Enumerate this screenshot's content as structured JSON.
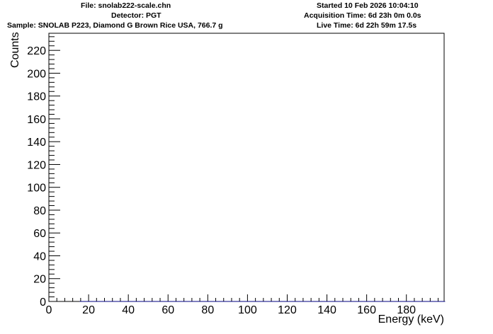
{
  "header": {
    "file": "File: snolab222-scale.chn",
    "detector": "Detector: PGT",
    "sample": "Sample: SNOLAB P223, Diamond G Brown Rice USA, 766.7 g",
    "started": "Started 10 Feb 2026 10:04:10",
    "acquisition": "Acquisition Time: 6d 23h 0m 0.0s",
    "live": "Live Time: 6d 22h 59m 17.5s"
  },
  "chart_data": {
    "type": "line",
    "style": "step-histogram",
    "xlabel": "Energy (keV)",
    "ylabel": "Counts",
    "xlim": [
      0,
      199
    ],
    "ylim": [
      0,
      235
    ],
    "x_ticks": [
      0,
      20,
      40,
      60,
      80,
      100,
      120,
      140,
      160,
      180
    ],
    "y_ticks": [
      0,
      20,
      40,
      60,
      80,
      100,
      120,
      140,
      160,
      180,
      200,
      220
    ],
    "line_color": "#000080",
    "bin_width_kev": 0.5,
    "series": [
      {
        "x_start": 15.5,
        "values": [
          0,
          0,
          0,
          0,
          0,
          0,
          0,
          0,
          0,
          0,
          0,
          0,
          0,
          0,
          0,
          0,
          0,
          0,
          0,
          0,
          0,
          0,
          0,
          0,
          0,
          0,
          0,
          0,
          0,
          0,
          0,
          0,
          0,
          0,
          0,
          0,
          0,
          0,
          0,
          0,
          0,
          0,
          0,
          0,
          0,
          0,
          0,
          0,
          0,
          0,
          0,
          0,
          0,
          0,
          0,
          0,
          0,
          0,
          0,
          0,
          0,
          0,
          0,
          0,
          0,
          0,
          0,
          0,
          0,
          0,
          0,
          0,
          0,
          0,
          0,
          0,
          0,
          0,
          0,
          0,
          0,
          0,
          0,
          0,
          0,
          0,
          0,
          0,
          0,
          0,
          0,
          0,
          0,
          0,
          0,
          0,
          0,
          0,
          0,
          0,
          0,
          0,
          0,
          0,
          0,
          0,
          0,
          0,
          0,
          0,
          0,
          0,
          0,
          0,
          0,
          0,
          0,
          0,
          0,
          0,
          0,
          0,
          0,
          0,
          0,
          0,
          0,
          0,
          0,
          0,
          0,
          0,
          0,
          0,
          0,
          0,
          0,
          0,
          0,
          0,
          0,
          0,
          0,
          0,
          0,
          0,
          0,
          0,
          0,
          0,
          0,
          0,
          0,
          0,
          0,
          0,
          0,
          0,
          0,
          0,
          0,
          0,
          0,
          0,
          0,
          0,
          0,
          0,
          0,
          0,
          0,
          0,
          0,
          0,
          0,
          0,
          0,
          0,
          0,
          0,
          0,
          0,
          0,
          0,
          0,
          0,
          0,
          0,
          0,
          0,
          0,
          0,
          0,
          0,
          0,
          0,
          0,
          0,
          0,
          0,
          0,
          0,
          0,
          0,
          0,
          0,
          0,
          0,
          0,
          0,
          0,
          0,
          0,
          0,
          0,
          0,
          0,
          0,
          0,
          0,
          0,
          0,
          0,
          0,
          0,
          0,
          0,
          0,
          0,
          0,
          0,
          0,
          0,
          0,
          0,
          0,
          0,
          0,
          0,
          0,
          0,
          0,
          0,
          0,
          0,
          0,
          0,
          0,
          0,
          0,
          0,
          0,
          0,
          0,
          0,
          0,
          0,
          0,
          0,
          0,
          0,
          0,
          0,
          0,
          0,
          0,
          0,
          0,
          0,
          0,
          0,
          0,
          0,
          0,
          0,
          0,
          0,
          0,
          0,
          0,
          0,
          0,
          0,
          0,
          0,
          0,
          0,
          0,
          0,
          0,
          0,
          0,
          0,
          0,
          0,
          0,
          0,
          0,
          0,
          0,
          0,
          0,
          0,
          0,
          0,
          0,
          0,
          0,
          0,
          0,
          0,
          0,
          0,
          0,
          0,
          0,
          0,
          0,
          0,
          0,
          0,
          0,
          0,
          0,
          0,
          0,
          0,
          0,
          0,
          0,
          0,
          0,
          0,
          0,
          0,
          0,
          0,
          0,
          0,
          0,
          0,
          0,
          0,
          0,
          0,
          0,
          0,
          0,
          0,
          0,
          0,
          0,
          0,
          0,
          0,
          0,
          0,
          0,
          0,
          0,
          0,
          0,
          0,
          0,
          0,
          0,
          0,
          0
        ]
      }
    ]
  }
}
